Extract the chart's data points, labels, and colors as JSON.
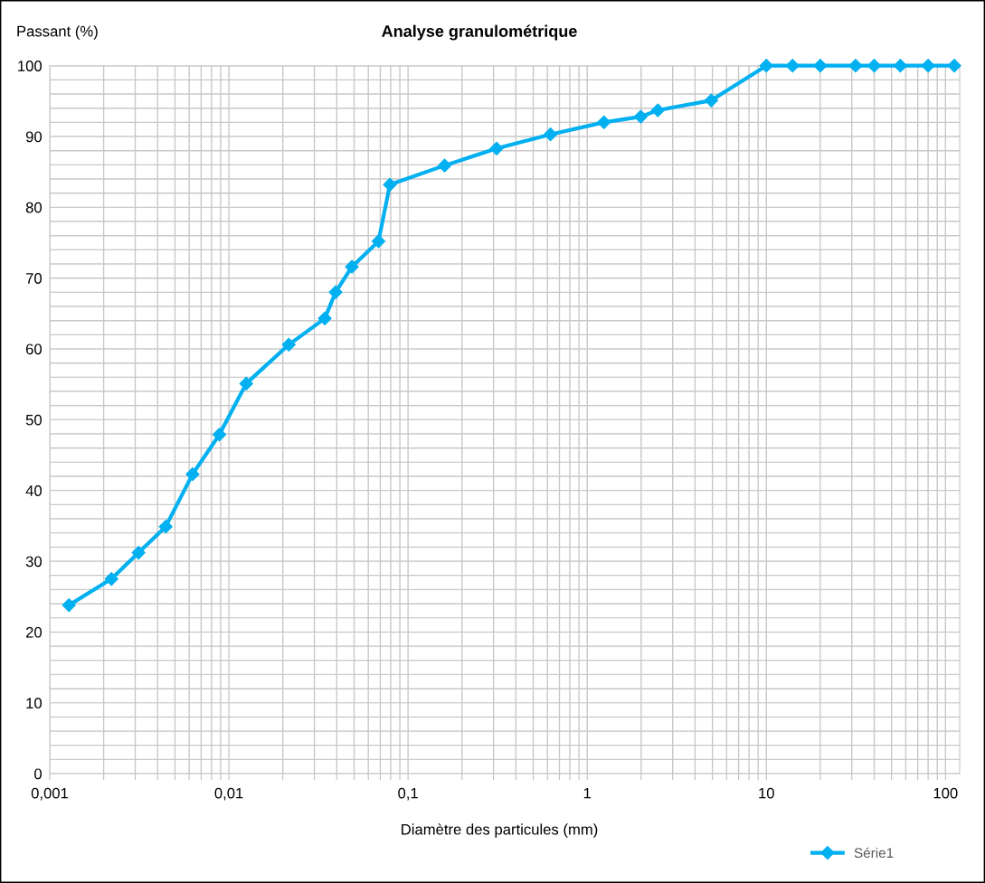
{
  "chart_data": {
    "type": "line",
    "title": "Analyse granulométrique",
    "xlabel": "Diamètre des particules (mm)",
    "ylabel": "Passant (%)",
    "log": "x",
    "grid": true,
    "legend": "bottom right",
    "marker": "diamond",
    "line_style": "solid",
    "xlim": [
      0.001,
      120
    ],
    "ylim": [
      0,
      100
    ],
    "xticks": [
      {
        "value": 0.001,
        "label": "0,001"
      },
      {
        "value": 0.002,
        "label": null
      },
      {
        "value": 0.003,
        "label": null
      },
      {
        "value": 0.004,
        "label": null
      },
      {
        "value": 0.005,
        "label": null
      },
      {
        "value": 0.006,
        "label": null
      },
      {
        "value": 0.007,
        "label": null
      },
      {
        "value": 0.008,
        "label": null
      },
      {
        "value": 0.009,
        "label": null
      },
      {
        "value": 0.01,
        "label": "0,01"
      },
      {
        "value": 0.02,
        "label": null
      },
      {
        "value": 0.03,
        "label": null
      },
      {
        "value": 0.04,
        "label": null
      },
      {
        "value": 0.05,
        "label": null
      },
      {
        "value": 0.06,
        "label": null
      },
      {
        "value": 0.07,
        "label": null
      },
      {
        "value": 0.08,
        "label": null
      },
      {
        "value": 0.09,
        "label": null
      },
      {
        "value": 0.1,
        "label": "0,1"
      },
      {
        "value": 0.2,
        "label": null
      },
      {
        "value": 0.3,
        "label": null
      },
      {
        "value": 0.4,
        "label": null
      },
      {
        "value": 0.5,
        "label": null
      },
      {
        "value": 0.6,
        "label": null
      },
      {
        "value": 0.7,
        "label": null
      },
      {
        "value": 0.8,
        "label": null
      },
      {
        "value": 0.9,
        "label": null
      },
      {
        "value": 1,
        "label": "1"
      },
      {
        "value": 2,
        "label": null
      },
      {
        "value": 3,
        "label": null
      },
      {
        "value": 4,
        "label": null
      },
      {
        "value": 5,
        "label": null
      },
      {
        "value": 6,
        "label": null
      },
      {
        "value": 7,
        "label": null
      },
      {
        "value": 8,
        "label": null
      },
      {
        "value": 9,
        "label": null
      },
      {
        "value": 10,
        "label": "10"
      },
      {
        "value": 20,
        "label": null
      },
      {
        "value": 30,
        "label": null
      },
      {
        "value": 40,
        "label": null
      },
      {
        "value": 50,
        "label": null
      },
      {
        "value": 60,
        "label": null
      },
      {
        "value": 70,
        "label": null
      },
      {
        "value": 80,
        "label": null
      },
      {
        "value": 90,
        "label": null
      },
      {
        "value": 100,
        "label": "100"
      }
    ],
    "yticks": [
      0,
      {
        "value": 2,
        "label": null
      },
      {
        "value": 4,
        "label": null
      },
      {
        "value": 6,
        "label": null
      },
      {
        "value": 8,
        "label": null
      },
      10,
      {
        "value": 12,
        "label": null
      },
      {
        "value": 14,
        "label": null
      },
      {
        "value": 16,
        "label": null
      },
      {
        "value": 18,
        "label": null
      },
      20,
      {
        "value": 22,
        "label": null
      },
      {
        "value": 24,
        "label": null
      },
      {
        "value": 26,
        "label": null
      },
      {
        "value": 28,
        "label": null
      },
      30,
      {
        "value": 32,
        "label": null
      },
      {
        "value": 34,
        "label": null
      },
      {
        "value": 36,
        "label": null
      },
      {
        "value": 38,
        "label": null
      },
      40,
      {
        "value": 42,
        "label": null
      },
      {
        "value": 44,
        "label": null
      },
      {
        "value": 46,
        "label": null
      },
      {
        "value": 48,
        "label": null
      },
      50,
      {
        "value": 52,
        "label": null
      },
      {
        "value": 54,
        "label": null
      },
      {
        "value": 56,
        "label": null
      },
      {
        "value": 58,
        "label": null
      },
      60,
      {
        "value": 62,
        "label": null
      },
      {
        "value": 64,
        "label": null
      },
      {
        "value": 66,
        "label": null
      },
      {
        "value": 68,
        "label": null
      },
      70,
      {
        "value": 72,
        "label": null
      },
      {
        "value": 74,
        "label": null
      },
      {
        "value": 76,
        "label": null
      },
      {
        "value": 78,
        "label": null
      },
      80,
      {
        "value": 82,
        "label": null
      },
      {
        "value": 84,
        "label": null
      },
      {
        "value": 86,
        "label": null
      },
      {
        "value": 88,
        "label": null
      },
      90,
      {
        "value": 92,
        "label": null
      },
      {
        "value": 94,
        "label": null
      },
      {
        "value": 96,
        "label": null
      },
      {
        "value": 98,
        "label": null
      },
      100
    ],
    "x": [
      0.00128,
      0.00221,
      0.00313,
      0.00444,
      0.00627,
      0.00885,
      0.0125,
      0.0216,
      0.0343,
      0.0394,
      0.0486,
      0.0684,
      0.0792,
      0.16,
      0.312,
      0.624,
      1.24,
      1.99,
      2.48,
      4.93,
      10,
      14,
      20,
      31.5,
      40,
      56,
      80,
      112
    ],
    "series": [
      {
        "name": "Série1",
        "color": "#00b0f0",
        "values": [
          23.8,
          27.5,
          31.2,
          34.9,
          42.3,
          47.9,
          55.1,
          60.6,
          64.3,
          68.0,
          71.6,
          75.2,
          83.2,
          85.9,
          88.3,
          90.3,
          92.0,
          92.8,
          93.7,
          95.1,
          100,
          100,
          100,
          100,
          100,
          100,
          100,
          100
        ]
      }
    ]
  }
}
